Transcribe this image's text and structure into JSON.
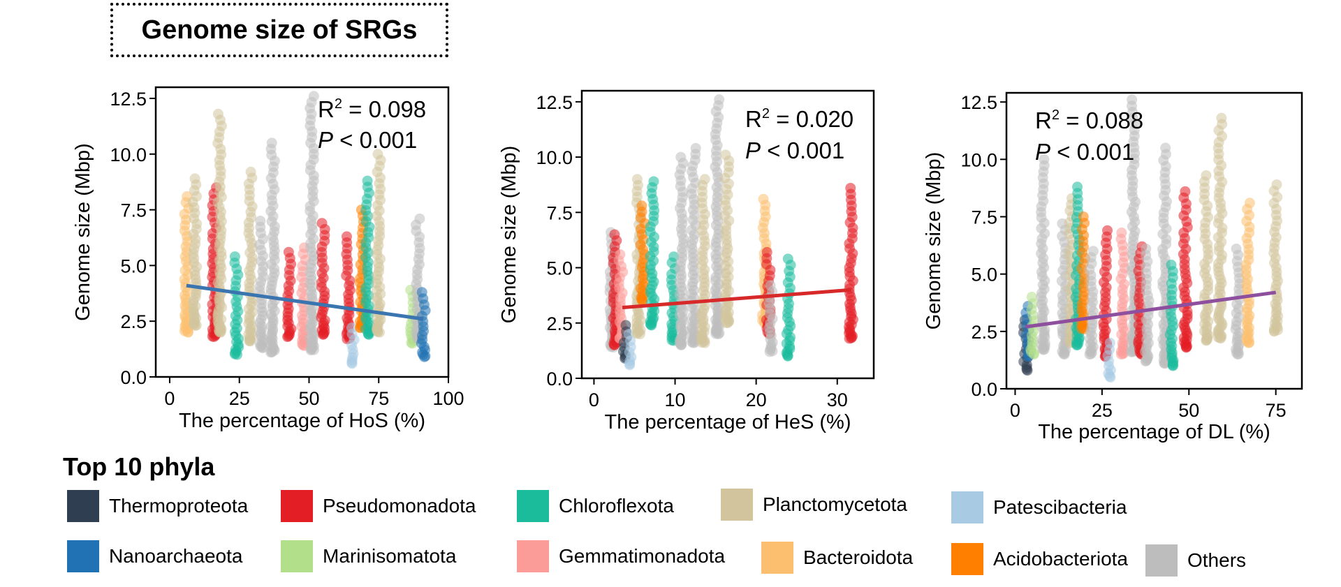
{
  "title": "Genome size of SRGs",
  "chart_data": [
    {
      "type": "scatter",
      "xlabel": "The percentage of HoS (%)",
      "ylabel": "Genome size (Mbp)",
      "xlim": [
        -5,
        100
      ],
      "ylim": [
        0,
        13
      ],
      "xticks": [
        0,
        25,
        50,
        75,
        100
      ],
      "yticks": [
        0.0,
        2.5,
        5.0,
        7.5,
        10.0,
        12.5
      ],
      "r2_label": "R",
      "r2_sup": "2",
      "r2_value": " = 0.098",
      "p_label": "P",
      "p_value": " < 0.001",
      "fit_line": {
        "x": [
          6,
          91
        ],
        "y": [
          4.1,
          2.6
        ],
        "color": "#3b75af"
      },
      "columns": [
        {
          "x": 6,
          "phylum": "Bacteroidota",
          "y_min": 2.0,
          "y_max": 8.1
        },
        {
          "x": 9,
          "phylum": "Planctomycetota",
          "y_min": 2.3,
          "y_max": 8.9
        },
        {
          "x": 16,
          "phylum": "Pseudomonadota",
          "y_min": 1.8,
          "y_max": 8.5
        },
        {
          "x": 18,
          "phylum": "Planctomycetota",
          "y_min": 2.0,
          "y_max": 11.8
        },
        {
          "x": 24,
          "phylum": "Chloroflexota",
          "y_min": 1.0,
          "y_max": 5.4
        },
        {
          "x": 29,
          "phylum": "Planctomycetota",
          "y_min": 1.6,
          "y_max": 9.2
        },
        {
          "x": 33,
          "phylum": "Others",
          "y_min": 1.3,
          "y_max": 7.0
        },
        {
          "x": 37,
          "phylum": "Others",
          "y_min": 1.1,
          "y_max": 10.5
        },
        {
          "x": 43,
          "phylum": "Pseudomonadota",
          "y_min": 1.8,
          "y_max": 5.6
        },
        {
          "x": 48,
          "phylum": "Gemmatimonadota",
          "y_min": 1.4,
          "y_max": 5.8
        },
        {
          "x": 51,
          "phylum": "Others",
          "y_min": 1.2,
          "y_max": 12.6
        },
        {
          "x": 55,
          "phylum": "Pseudomonadota",
          "y_min": 1.9,
          "y_max": 6.9
        },
        {
          "x": 64,
          "phylum": "Pseudomonadota",
          "y_min": 1.7,
          "y_max": 6.3
        },
        {
          "x": 66,
          "phylum": "Patescibacteria",
          "y_min": 0.6,
          "y_max": 2.2
        },
        {
          "x": 69,
          "phylum": "Acidobacteriota",
          "y_min": 2.2,
          "y_max": 7.5
        },
        {
          "x": 71,
          "phylum": "Chloroflexota",
          "y_min": 1.9,
          "y_max": 8.8
        },
        {
          "x": 75,
          "phylum": "Planctomycetota",
          "y_min": 2.0,
          "y_max": 10.0
        },
        {
          "x": 87,
          "phylum": "Marinisomatota",
          "y_min": 1.5,
          "y_max": 3.9
        },
        {
          "x": 89,
          "phylum": "Others",
          "y_min": 1.7,
          "y_max": 7.1
        },
        {
          "x": 91,
          "phylum": "Nanoarchaeota",
          "y_min": 0.9,
          "y_max": 3.8
        }
      ]
    },
    {
      "type": "scatter",
      "xlabel": "The percentage of HeS (%)",
      "ylabel": "Genome size (Mbp)",
      "xlim": [
        -1.5,
        34.5
      ],
      "ylim": [
        0,
        13
      ],
      "xticks": [
        0,
        10,
        20,
        30
      ],
      "yticks": [
        0.0,
        2.5,
        5.0,
        7.5,
        10.0,
        12.5
      ],
      "r2_label": "R",
      "r2_sup": "2",
      "r2_value": " = 0.020",
      "p_label": "P",
      "p_value": " < 0.001",
      "fit_line": {
        "x": [
          3.5,
          31.7
        ],
        "y": [
          3.2,
          4.0
        ],
        "color": "#d7292a"
      },
      "columns": [
        {
          "x": 2.2,
          "phylum": "Others",
          "y_min": 1.4,
          "y_max": 6.6
        },
        {
          "x": 2.6,
          "phylum": "Pseudomonadota",
          "y_min": 1.5,
          "y_max": 6.5
        },
        {
          "x": 3.3,
          "phylum": "Gemmatimonadota",
          "y_min": 1.8,
          "y_max": 5.6
        },
        {
          "x": 3.8,
          "phylum": "Thermoproteota",
          "y_min": 0.9,
          "y_max": 2.4
        },
        {
          "x": 4.5,
          "phylum": "Patescibacteria",
          "y_min": 0.6,
          "y_max": 2.0
        },
        {
          "x": 5.5,
          "phylum": "Planctomycetota",
          "y_min": 2.0,
          "y_max": 9.0
        },
        {
          "x": 6.0,
          "phylum": "Acidobacteriota",
          "y_min": 3.5,
          "y_max": 7.8
        },
        {
          "x": 7.2,
          "phylum": "Chloroflexota",
          "y_min": 2.4,
          "y_max": 8.9
        },
        {
          "x": 9.8,
          "phylum": "Chloroflexota",
          "y_min": 1.7,
          "y_max": 5.5
        },
        {
          "x": 10.8,
          "phylum": "Others",
          "y_min": 1.5,
          "y_max": 10.0
        },
        {
          "x": 12.3,
          "phylum": "Others",
          "y_min": 1.6,
          "y_max": 10.4
        },
        {
          "x": 13.5,
          "phylum": "Planctomycetota",
          "y_min": 1.6,
          "y_max": 9.0
        },
        {
          "x": 15.2,
          "phylum": "Others",
          "y_min": 2.0,
          "y_max": 12.6
        },
        {
          "x": 16.4,
          "phylum": "Planctomycetota",
          "y_min": 2.5,
          "y_max": 10.1
        },
        {
          "x": 21.0,
          "phylum": "Bacteroidota",
          "y_min": 2.5,
          "y_max": 8.1
        },
        {
          "x": 21.5,
          "phylum": "Pseudomonadota",
          "y_min": 2.0,
          "y_max": 5.7
        },
        {
          "x": 21.8,
          "phylum": "Others",
          "y_min": 1.2,
          "y_max": 4.2
        },
        {
          "x": 24.0,
          "phylum": "Chloroflexota",
          "y_min": 1.0,
          "y_max": 5.4
        },
        {
          "x": 31.7,
          "phylum": "Pseudomonadota",
          "y_min": 1.8,
          "y_max": 8.6
        }
      ]
    },
    {
      "type": "scatter",
      "xlabel": "The percentage of DL (%)",
      "ylabel": "Genome size (Mbp)",
      "xlim": [
        -2.5,
        82.5
      ],
      "ylim": [
        0,
        12.9
      ],
      "xticks": [
        0,
        25,
        50,
        75
      ],
      "yticks": [
        0.0,
        2.5,
        5.0,
        7.5,
        10.0,
        12.5
      ],
      "r2_label": "R",
      "r2_sup": "2",
      "r2_value": " = 0.088",
      "p_label": "P",
      "p_value": " < 0.001",
      "fit_line": {
        "x": [
          3,
          75
        ],
        "y": [
          2.7,
          4.2
        ],
        "color": "#8e4f9e"
      },
      "columns": [
        {
          "x": 3,
          "phylum": "Thermoproteota",
          "y_min": 0.8,
          "y_max": 3.0
        },
        {
          "x": 3.6,
          "phylum": "Nanoarchaeota",
          "y_min": 1.4,
          "y_max": 3.6
        },
        {
          "x": 5,
          "phylum": "Marinisomatota",
          "y_min": 1.5,
          "y_max": 4.0
        },
        {
          "x": 8,
          "phylum": "Others",
          "y_min": 1.7,
          "y_max": 10.0
        },
        {
          "x": 14,
          "phylum": "Others",
          "y_min": 1.5,
          "y_max": 7.2
        },
        {
          "x": 16,
          "phylum": "Planctomycetota",
          "y_min": 2.0,
          "y_max": 8.3
        },
        {
          "x": 18,
          "phylum": "Chloroflexota",
          "y_min": 1.9,
          "y_max": 8.8
        },
        {
          "x": 19.5,
          "phylum": "Acidobacteriota",
          "y_min": 2.6,
          "y_max": 7.5
        },
        {
          "x": 22,
          "phylum": "Others",
          "y_min": 1.5,
          "y_max": 6.0
        },
        {
          "x": 26,
          "phylum": "Pseudomonadota",
          "y_min": 1.4,
          "y_max": 6.9
        },
        {
          "x": 27,
          "phylum": "Patescibacteria",
          "y_min": 0.5,
          "y_max": 2.0
        },
        {
          "x": 31,
          "phylum": "Gemmatimonadota",
          "y_min": 1.5,
          "y_max": 6.8
        },
        {
          "x": 34,
          "phylum": "Others",
          "y_min": 1.6,
          "y_max": 12.6
        },
        {
          "x": 36,
          "phylum": "Pseudomonadota",
          "y_min": 1.5,
          "y_max": 6.2
        },
        {
          "x": 38,
          "phylum": "Others",
          "y_min": 1.2,
          "y_max": 6.1
        },
        {
          "x": 43,
          "phylum": "Others",
          "y_min": 1.1,
          "y_max": 10.5
        },
        {
          "x": 45,
          "phylum": "Chloroflexota",
          "y_min": 1.0,
          "y_max": 5.4
        },
        {
          "x": 49,
          "phylum": "Pseudomonadota",
          "y_min": 1.8,
          "y_max": 8.6
        },
        {
          "x": 55,
          "phylum": "Planctomycetota",
          "y_min": 2.1,
          "y_max": 9.3
        },
        {
          "x": 59,
          "phylum": "Planctomycetota",
          "y_min": 2.2,
          "y_max": 11.8
        },
        {
          "x": 64,
          "phylum": "Others",
          "y_min": 1.5,
          "y_max": 6.1
        },
        {
          "x": 67,
          "phylum": "Bacteroidota",
          "y_min": 2.0,
          "y_max": 8.1
        },
        {
          "x": 75,
          "phylum": "Planctomycetota",
          "y_min": 2.5,
          "y_max": 8.9
        }
      ]
    }
  ],
  "legend": {
    "title": "Top 10 phyla",
    "items": [
      {
        "name": "Thermoproteota",
        "color": "#2f3e50"
      },
      {
        "name": "Pseudomonadota",
        "color": "#e31e24"
      },
      {
        "name": "Chloroflexota",
        "color": "#1abc9c"
      },
      {
        "name": "Planctomycetota",
        "color": "#d2c49d"
      },
      {
        "name": "Patescibacteria",
        "color": "#a8cbe3"
      },
      {
        "name": "Nanoarchaeota",
        "color": "#2072b4"
      },
      {
        "name": "Marinisomatota",
        "color": "#b2df8a"
      },
      {
        "name": "Gemmatimonadota",
        "color": "#fb9c99"
      },
      {
        "name": "Bacteroidota",
        "color": "#fbbf6f"
      },
      {
        "name": "Acidobacteriota",
        "color": "#ff7f00"
      },
      {
        "name": "Others",
        "color": "#bdbdbd"
      }
    ]
  }
}
